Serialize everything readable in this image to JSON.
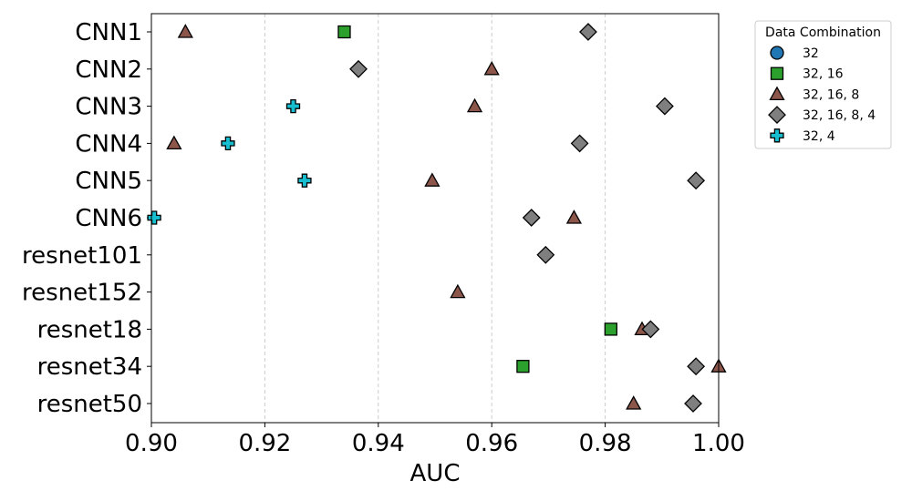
{
  "chart_data": {
    "type": "scatter",
    "xlabel": "AUC",
    "ylabel": "",
    "xlim": [
      0.9,
      1.0
    ],
    "x_ticks": [
      "0.90",
      "0.92",
      "0.94",
      "0.96",
      "0.98",
      "1.00"
    ],
    "x_tick_values": [
      0.9,
      0.92,
      0.94,
      0.96,
      0.98,
      1.0
    ],
    "grid": "vertical dashed",
    "categories": [
      "CNN1",
      "CNN2",
      "CNN3",
      "CNN4",
      "CNN5",
      "CNN6",
      "resnet101",
      "resnet152",
      "resnet18",
      "resnet34",
      "resnet50"
    ],
    "legend": {
      "title": "Data Combination",
      "placement": "outside right, top",
      "entries": [
        "32",
        "32, 16",
        "32, 16, 8",
        "32, 16, 8, 4",
        "32, 4"
      ]
    },
    "series": [
      {
        "name": "32",
        "marker": "circle",
        "color": "#1f77b4",
        "points": []
      },
      {
        "name": "32, 16",
        "marker": "square",
        "color": "#2ca02c",
        "points": [
          {
            "category": "CNN1",
            "x": 0.934
          },
          {
            "category": "resnet18",
            "x": 0.981
          },
          {
            "category": "resnet34",
            "x": 0.9655
          }
        ]
      },
      {
        "name": "32, 16, 8",
        "marker": "triangle",
        "color": "#8c564b",
        "points": [
          {
            "category": "CNN1",
            "x": 0.906
          },
          {
            "category": "CNN2",
            "x": 0.96
          },
          {
            "category": "CNN3",
            "x": 0.957
          },
          {
            "category": "CNN4",
            "x": 0.904
          },
          {
            "category": "CNN5",
            "x": 0.9495
          },
          {
            "category": "CNN6",
            "x": 0.9745
          },
          {
            "category": "resnet152",
            "x": 0.954
          },
          {
            "category": "resnet18",
            "x": 0.9865
          },
          {
            "category": "resnet34",
            "x": 1.0
          },
          {
            "category": "resnet50",
            "x": 0.985
          }
        ]
      },
      {
        "name": "32, 16, 8, 4",
        "marker": "diamond",
        "color": "#7f7f7f",
        "points": [
          {
            "category": "CNN1",
            "x": 0.977
          },
          {
            "category": "CNN2",
            "x": 0.9365
          },
          {
            "category": "CNN3",
            "x": 0.9905
          },
          {
            "category": "CNN4",
            "x": 0.9755
          },
          {
            "category": "CNN5",
            "x": 0.996
          },
          {
            "category": "CNN6",
            "x": 0.967
          },
          {
            "category": "resnet101",
            "x": 0.9695
          },
          {
            "category": "resnet18",
            "x": 0.988
          },
          {
            "category": "resnet34",
            "x": 0.996
          },
          {
            "category": "resnet50",
            "x": 0.9955
          }
        ]
      },
      {
        "name": "32, 4",
        "marker": "plus",
        "color": "#17becf",
        "points": [
          {
            "category": "CNN3",
            "x": 0.925
          },
          {
            "category": "CNN4",
            "x": 0.9135
          },
          {
            "category": "CNN5",
            "x": 0.927
          },
          {
            "category": "CNN6",
            "x": 0.9005
          }
        ]
      }
    ]
  }
}
